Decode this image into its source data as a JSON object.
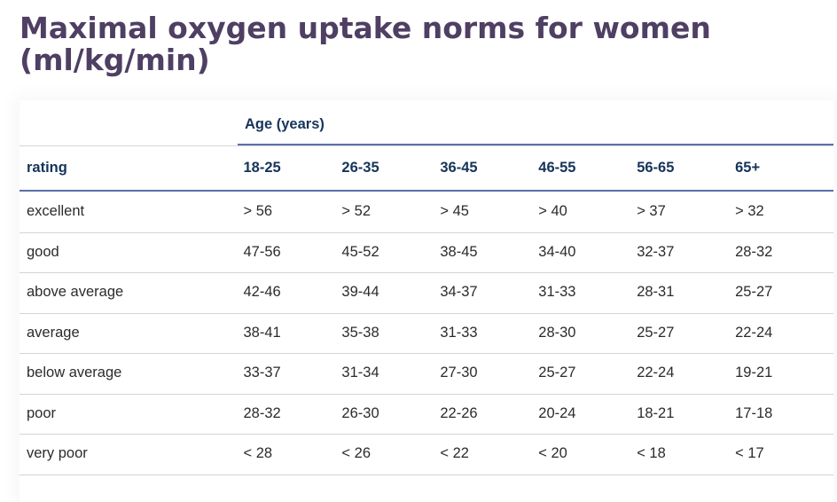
{
  "title_line1": "Maximal oxygen uptake norms for women",
  "title_line2": "(ml/kg/min)",
  "table": {
    "group_header": "Age (years)",
    "columns": [
      "rating",
      "18-25",
      "26-35",
      "36-45",
      "46-55",
      "56-65",
      "65+"
    ],
    "rows": [
      [
        "excellent",
        "> 56",
        "> 52",
        "> 45",
        "> 40",
        "> 37",
        "> 32"
      ],
      [
        "good",
        "47-56",
        "45-52",
        "38-45",
        "34-40",
        "32-37",
        "28-32"
      ],
      [
        "above average",
        "42-46",
        "39-44",
        "34-37",
        "31-33",
        "28-31",
        "25-27"
      ],
      [
        "average",
        "38-41",
        "35-38",
        "31-33",
        "28-30",
        "25-27",
        "22-24"
      ],
      [
        "below average",
        "33-37",
        "31-34",
        "27-30",
        "25-27",
        "22-24",
        "19-21"
      ],
      [
        "poor",
        "28-32",
        "26-30",
        "22-26",
        "20-24",
        "18-21",
        "17-18"
      ],
      [
        "very poor",
        "< 28",
        "< 26",
        "< 22",
        "< 20",
        "< 18",
        "< 17"
      ]
    ]
  },
  "colors": {
    "title": "#4f3f63",
    "header_text": "#16345a",
    "rule": "#5b6fa8"
  }
}
